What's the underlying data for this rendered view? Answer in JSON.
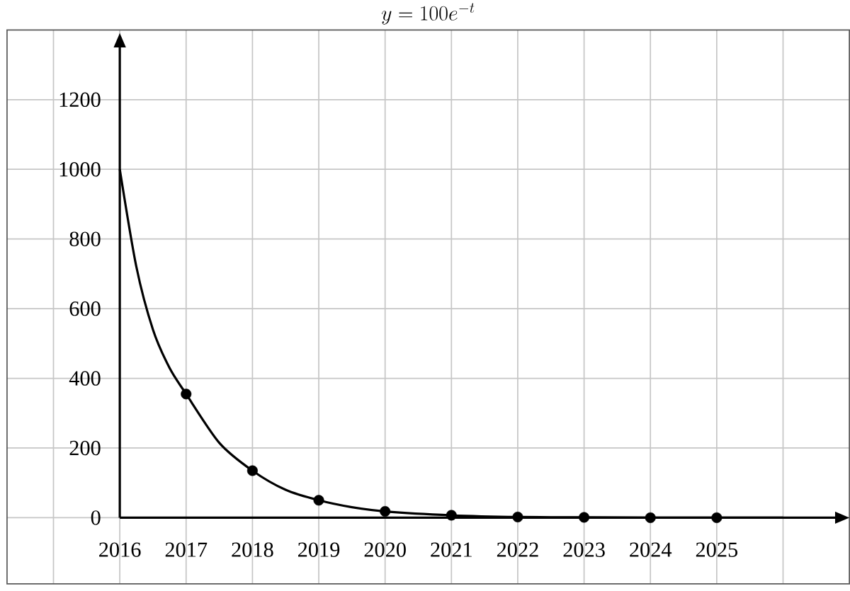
{
  "chart_data": {
    "type": "line",
    "title": "y = 100e^{-t}",
    "series": [
      {
        "color": "#000000",
        "marker": "none",
        "x": [
          2016,
          2016.25,
          2016.5,
          2016.75,
          2017,
          2017.5,
          2018,
          2018.5,
          2019,
          2019.5,
          2020,
          2021,
          2022,
          2023,
          2024,
          2025,
          2026
        ],
        "values": [
          1000,
          720,
          540,
          430,
          355,
          215,
          135,
          80,
          50,
          30,
          18,
          7,
          2,
          1,
          0,
          0,
          0
        ]
      },
      {
        "type": "scatter",
        "color": "#000000",
        "marker": "circle",
        "x": [
          2017,
          2018,
          2019,
          2020,
          2021,
          2022,
          2023,
          2024,
          2025
        ],
        "values": [
          355,
          135,
          50,
          18,
          7,
          2,
          1,
          0,
          0
        ]
      }
    ],
    "xlim": [
      2014.3,
      2027
    ],
    "ylim": [
      -190,
      1400
    ],
    "xticks": [
      {
        "value": 2015,
        "label": null
      },
      2016,
      2017,
      2018,
      2019,
      2020,
      2021,
      2022,
      2023,
      2024,
      2025,
      {
        "value": 2026,
        "label": null
      }
    ],
    "yticks": [
      0,
      200,
      400,
      600,
      800,
      1000,
      1200
    ],
    "grid": true
  }
}
